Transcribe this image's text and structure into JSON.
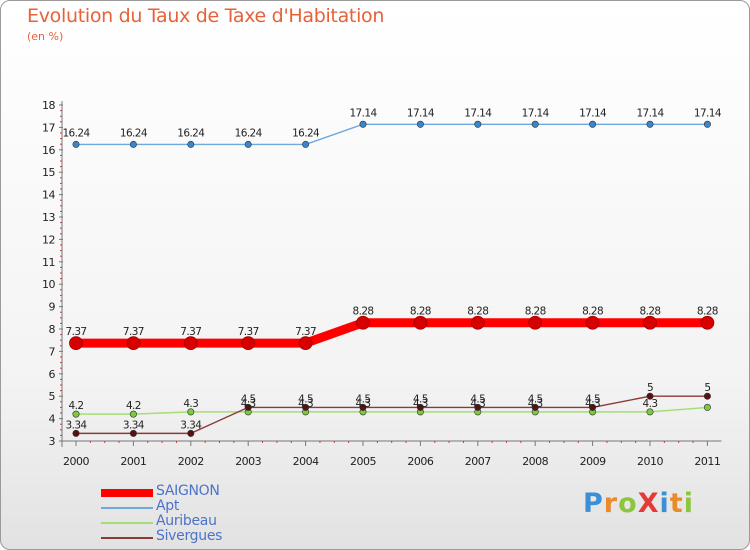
{
  "header": {
    "title": "Evolution du Taux de Taxe d'Habitation",
    "subtitle": "(en %)"
  },
  "logo": {
    "text": "ProXiti",
    "letters": [
      {
        "ch": "P",
        "color": "#3a8fd6"
      },
      {
        "ch": "r",
        "color": "#e98a2b"
      },
      {
        "ch": "o",
        "color": "#8cc63f"
      },
      {
        "ch": "X",
        "color": "#e53935"
      },
      {
        "ch": "i",
        "color": "#3a8fd6"
      },
      {
        "ch": "t",
        "color": "#e98a2b"
      },
      {
        "ch": "i",
        "color": "#8cc63f"
      }
    ]
  },
  "chart_data": {
    "type": "line",
    "title": "Evolution du Taux de Taxe d'Habitation",
    "subtitle": "(en %)",
    "x": [
      "2000",
      "2001",
      "2002",
      "2003",
      "2004",
      "2005",
      "2006",
      "2007",
      "2008",
      "2009",
      "2010",
      "2011"
    ],
    "ylim": [
      3,
      18
    ],
    "yticks": [
      "3",
      "4",
      "5",
      "6",
      "7",
      "8",
      "9",
      "10",
      "11",
      "12",
      "13",
      "14",
      "15",
      "16",
      "17",
      "18"
    ],
    "grid": false,
    "legend_position": "bottom-left",
    "series": [
      {
        "name": "SAIGNON",
        "color": "#ff0000",
        "marker": "#d70000",
        "width": "thick",
        "values": [
          7.37,
          7.37,
          7.37,
          7.37,
          7.37,
          8.28,
          8.28,
          8.28,
          8.28,
          8.28,
          8.28,
          8.28
        ],
        "labels": [
          "7.37",
          "7.37",
          "7.37",
          "7.37",
          "7.37",
          "8.28",
          "8.28",
          "8.28",
          "8.28",
          "8.28",
          "8.28",
          "8.28"
        ]
      },
      {
        "name": "Apt",
        "color": "#6fa8dc",
        "marker": "#3d85c6",
        "width": "thin",
        "values": [
          16.24,
          16.24,
          16.24,
          16.24,
          16.24,
          17.14,
          17.14,
          17.14,
          17.14,
          17.14,
          17.14,
          17.14
        ],
        "labels": [
          "16.24",
          "16.24",
          "16.24",
          "16.24",
          "16.24",
          "17.14",
          "17.14",
          "17.14",
          "17.14",
          "17.14",
          "17.14",
          "17.14"
        ]
      },
      {
        "name": "Auribeau",
        "color": "#a4de74",
        "marker": "#7acc3a",
        "width": "thin",
        "values": [
          4.2,
          4.2,
          4.3,
          4.3,
          4.3,
          4.3,
          4.3,
          4.3,
          4.3,
          4.3,
          4.3,
          4.5
        ],
        "labels": [
          "4.2",
          "4.2",
          "4.3",
          "4.3",
          "4.3",
          "4.3",
          "4.3",
          "4.3",
          "4.3",
          "4.3",
          "4.3",
          ""
        ]
      },
      {
        "name": "Sivergues",
        "color": "#8b3a3a",
        "marker": "#5a1010",
        "width": "thin",
        "values": [
          3.34,
          3.34,
          3.34,
          4.5,
          4.5,
          4.5,
          4.5,
          4.5,
          4.5,
          4.5,
          5,
          5
        ],
        "labels": [
          "3.34",
          "3.34",
          "3.34",
          "4.5",
          "4.5",
          "4.5",
          "4.5",
          "4.5",
          "4.5",
          "4.5",
          "5",
          "5"
        ]
      }
    ]
  }
}
